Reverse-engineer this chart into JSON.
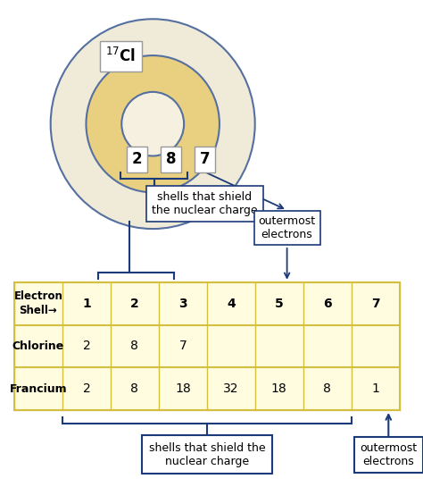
{
  "bg_color": "#ffffff",
  "atom_label": "¹⁷Cl",
  "shell_numbers": [
    "2",
    "8",
    "7"
  ],
  "circle_color_outer": "#f0ead8",
  "circle_color_mid": "#e8d080",
  "circle_color_inner": "#f5f0e0",
  "circle_edge_color": "#5570a0",
  "dark_blue": "#1a3a7a",
  "gray_edge": "#999999",
  "table_bg": "#fffce0",
  "table_line_color": "#d4c040",
  "col_headers": [
    "1",
    "2",
    "3",
    "4",
    "5",
    "6",
    "7"
  ],
  "chlorine_vals": [
    "2",
    "8",
    "7",
    "",
    "",
    "",
    ""
  ],
  "francium_vals": [
    "2",
    "8",
    "18",
    "32",
    "18",
    "8",
    "1"
  ],
  "shield_box_text": "shells that shield the\nnuclear charge",
  "outermost_text": "outermost\nelectrons",
  "top_shield_text": "shells that shield\nthe nuclear charge",
  "top_outermost_text": "outermost\nelectrons"
}
